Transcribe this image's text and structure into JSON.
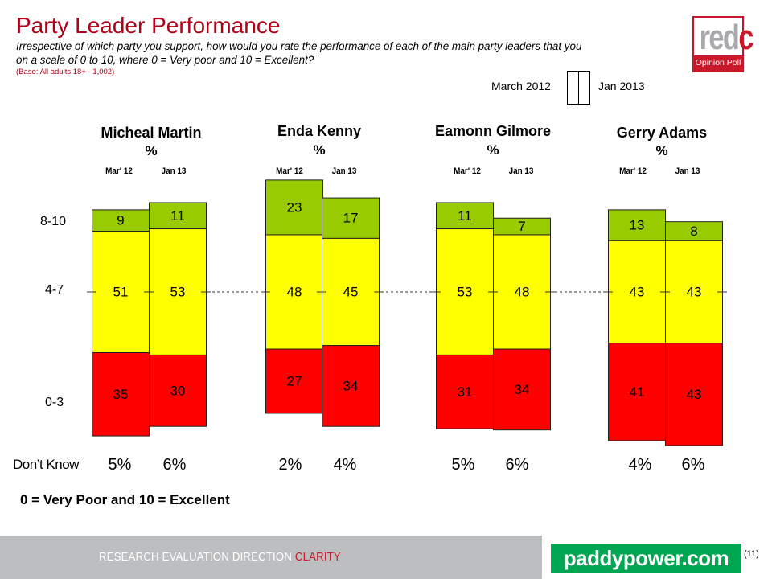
{
  "header": {
    "title": "Party Leader Performance",
    "subtitle_line1": "Irrespective of which party you support, how would you rate the performance of each of the main party leaders that you",
    "subtitle_line2": "on a scale of 0 to 10, where 0 = Very poor and 10 = Excellent?",
    "base": "(Base: All adults 18+ - 1,002)"
  },
  "logo": {
    "word_grey": "red",
    "word_red": "c",
    "band": "Opinion Poll"
  },
  "legend": {
    "left": "March 2012",
    "right": "Jan 2013"
  },
  "chart_data": {
    "type": "bar",
    "subtype": "stacked-centered",
    "title": "Party Leader Performance",
    "unit": "%",
    "categories_rows": [
      "8-10",
      "4-7",
      "0-3"
    ],
    "periods": [
      "Mar' 12",
      "Jan 13"
    ],
    "segment_colors": {
      "8-10": "#99cc00",
      "4-7": "#ffff00",
      "0-3": "#ff0000"
    },
    "leaders": [
      {
        "name": "Micheal Martin",
        "unit_label": "%",
        "bars": [
          {
            "period": "Mar' 12",
            "high": 9,
            "mid": 51,
            "low": 35,
            "dont_know": "5%"
          },
          {
            "period": "Jan 13",
            "high": 11,
            "mid": 53,
            "low": 30,
            "dont_know": "6%"
          }
        ]
      },
      {
        "name": "Enda Kenny",
        "unit_label": "%",
        "bars": [
          {
            "period": "Mar' 12",
            "high": 23,
            "mid": 48,
            "low": 27,
            "dont_know": "2%"
          },
          {
            "period": "Jan 13",
            "high": 17,
            "mid": 45,
            "low": 34,
            "dont_know": "4%"
          }
        ]
      },
      {
        "name": "Eamonn Gilmore",
        "unit_label": "%",
        "bars": [
          {
            "period": "Mar' 12",
            "high": 11,
            "mid": 53,
            "low": 31,
            "dont_know": "5%"
          },
          {
            "period": "Jan 13",
            "high": 7,
            "mid": 48,
            "low": 34,
            "dont_know": "6%"
          }
        ]
      },
      {
        "name": "Gerry Adams",
        "unit_label": "%",
        "bars": [
          {
            "period": "Mar' 12",
            "high": 13,
            "mid": 43,
            "low": 41,
            "dont_know": "4%"
          },
          {
            "period": "Jan 13",
            "high": 8,
            "mid": 43,
            "low": 43,
            "dont_know": "6%"
          }
        ]
      }
    ],
    "dont_know_label": "Don’t Know",
    "note": "0 = Very Poor and 10 = Excellent"
  },
  "footer": {
    "tagline": "RESEARCH EVALUATION DIRECTION",
    "tagline_accent": "CLARITY",
    "sponsor": "paddypower.com",
    "page_number": "(11)"
  }
}
